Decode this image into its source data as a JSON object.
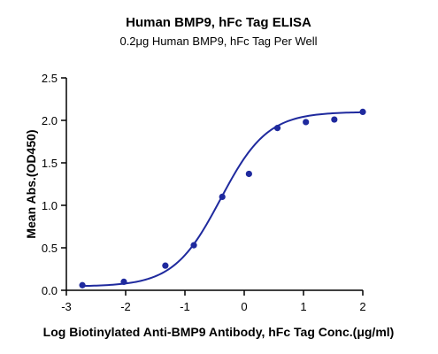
{
  "chart_data": {
    "type": "scatter",
    "title": "Human BMP9, hFc Tag ELISA",
    "subtitle": "0.2μg Human BMP9, hFc Tag Per Well",
    "xlabel": "Log Biotinylated Anti-BMP9 Antibody, hFc Tag Conc.(μg/ml)",
    "ylabel": "Mean Abs.(OD450)",
    "xlim": [
      -3,
      2
    ],
    "ylim": [
      0,
      2.5
    ],
    "x_ticks": [
      "-3",
      "-2",
      "-1",
      "0",
      "1",
      "2"
    ],
    "y_ticks": [
      "0.0",
      "0.5",
      "1.0",
      "1.5",
      "2.0",
      "2.5"
    ],
    "grid": false,
    "legend": "none",
    "series": [
      {
        "x": [
          -2.73,
          -2.03,
          -1.33,
          -0.85,
          -0.37,
          0.08,
          0.56,
          1.04,
          1.52,
          2.0
        ],
        "y": [
          0.06,
          0.1,
          0.29,
          0.53,
          1.1,
          1.37,
          1.91,
          1.98,
          2.01,
          2.1
        ],
        "color": "#1f2a9e",
        "fit_curve": "sigmoid"
      }
    ]
  }
}
